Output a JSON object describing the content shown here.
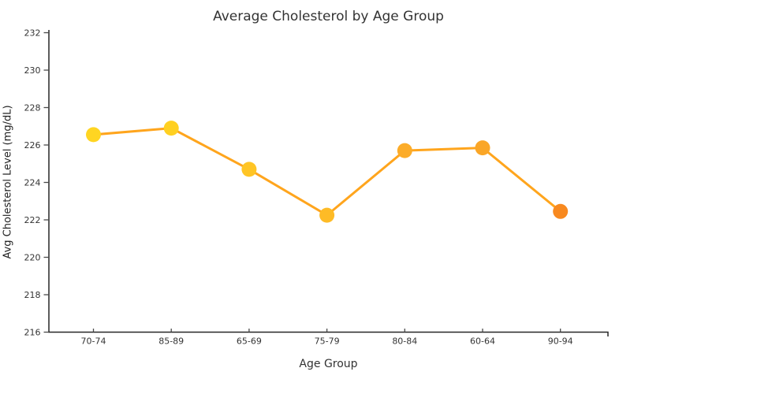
{
  "chart_data": {
    "type": "line",
    "title": "Average Cholesterol by Age Group",
    "xlabel": "Age Group",
    "ylabel": "Avg Cholesterol Level (mg/dL)",
    "categories": [
      "70-74",
      "85-89",
      "65-69",
      "75-79",
      "80-84",
      "60-64",
      "90-94"
    ],
    "values": [
      226.55,
      226.9,
      224.7,
      222.25,
      225.7,
      225.85,
      222.45
    ],
    "ylim": [
      216,
      232
    ],
    "yticks": [
      216,
      218,
      220,
      222,
      224,
      226,
      228,
      230,
      232
    ],
    "grid": false,
    "legend": false,
    "colors": {
      "line": "#FFA51D",
      "markers": [
        "#FFD522",
        "#FFD021",
        "#FFC525",
        "#FEBB26",
        "#FCAC29",
        "#FAA627",
        "#F8891F"
      ],
      "axis": "#262626",
      "tick": "#4A4A4A",
      "text": "#333333"
    }
  }
}
